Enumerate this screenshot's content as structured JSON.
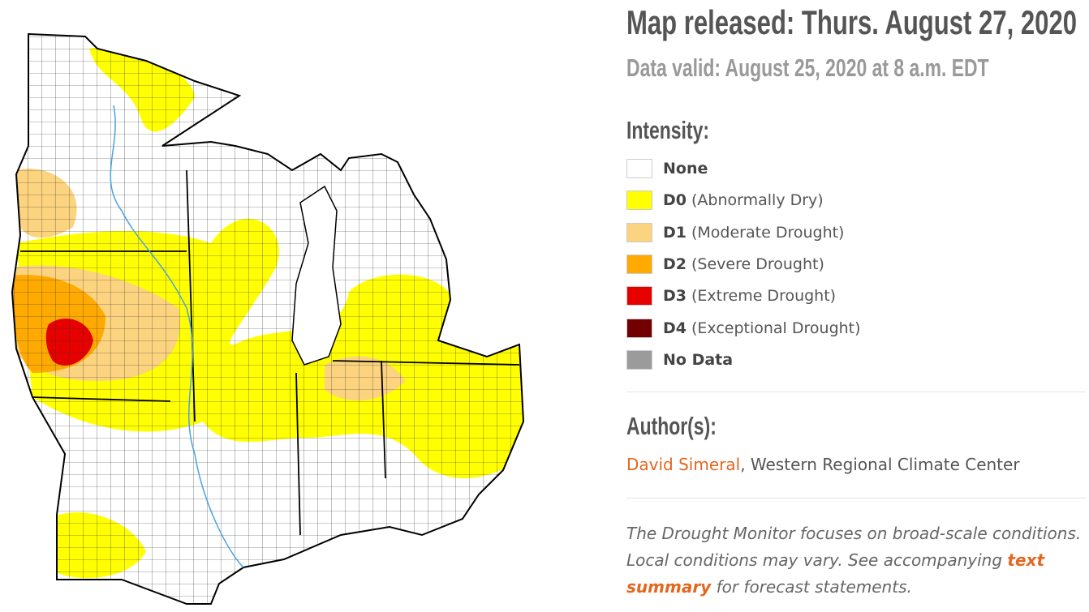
{
  "header": {
    "title": "Map released: Thurs. August 27, 2020",
    "subtitle": "Data valid: August 25, 2020 at 8 a.m. EDT"
  },
  "legend": {
    "title": "Intensity:",
    "items": [
      {
        "code": "None",
        "description": "",
        "color": "#ffffff"
      },
      {
        "code": "D0",
        "description": "(Abnormally Dry)",
        "color": "#ffff00"
      },
      {
        "code": "D1",
        "description": "(Moderate Drought)",
        "color": "#fcd37f"
      },
      {
        "code": "D2",
        "description": "(Severe Drought)",
        "color": "#ffaa00"
      },
      {
        "code": "D3",
        "description": "(Extreme Drought)",
        "color": "#e60000"
      },
      {
        "code": "D4",
        "description": "(Exceptional Drought)",
        "color": "#730000"
      },
      {
        "code": "No Data",
        "description": "",
        "color": "#9b9b9b"
      }
    ]
  },
  "author": {
    "title": "Author(s):",
    "name": "David Simeral",
    "affiliation": ", Western Regional Climate Center"
  },
  "note": {
    "before": "The Drought Monitor focuses on broad-scale conditions. Local conditions may vary. See accompanying ",
    "link": "text summary",
    "after": " for forecast statements."
  }
}
